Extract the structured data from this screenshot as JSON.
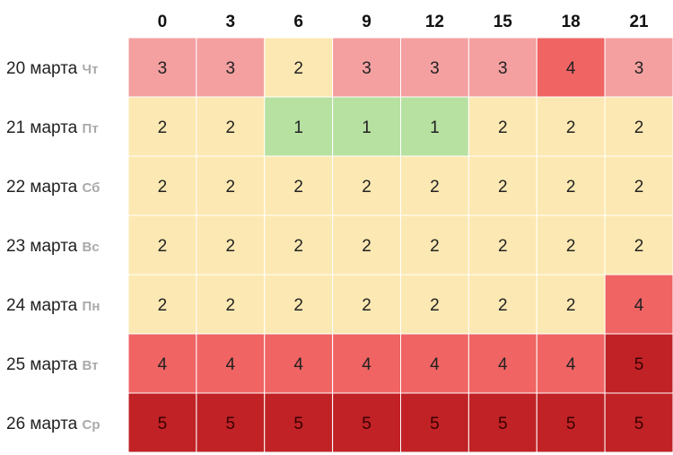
{
  "chart_data": {
    "type": "heatmap",
    "x": [
      "0",
      "3",
      "6",
      "9",
      "12",
      "15",
      "18",
      "21"
    ],
    "rows": [
      {
        "date": "20 марта",
        "dow": "Чт",
        "values": [
          3,
          3,
          2,
          3,
          3,
          3,
          4,
          3
        ]
      },
      {
        "date": "21 марта",
        "dow": "Пт",
        "values": [
          2,
          2,
          1,
          1,
          1,
          2,
          2,
          2
        ]
      },
      {
        "date": "22 марта",
        "dow": "Сб",
        "values": [
          2,
          2,
          2,
          2,
          2,
          2,
          2,
          2
        ]
      },
      {
        "date": "23 марта",
        "dow": "Вс",
        "values": [
          2,
          2,
          2,
          2,
          2,
          2,
          2,
          2
        ]
      },
      {
        "date": "24 марта",
        "dow": "Пн",
        "values": [
          2,
          2,
          2,
          2,
          2,
          2,
          2,
          4
        ]
      },
      {
        "date": "25 марта",
        "dow": "Вт",
        "values": [
          4,
          4,
          4,
          4,
          4,
          4,
          4,
          5
        ]
      },
      {
        "date": "26 марта",
        "dow": "Ср",
        "values": [
          5,
          5,
          5,
          5,
          5,
          5,
          5,
          5
        ]
      }
    ],
    "colors": {
      "1": "#b7e1a1",
      "2": "#fce8b2",
      "3": "#f4a0a0",
      "4": "#f06464",
      "5": "#c02226"
    },
    "text_colors": {
      "1": "#222222",
      "2": "#222222",
      "3": "#222222",
      "4": "#222222",
      "5": "#3a0000"
    }
  }
}
